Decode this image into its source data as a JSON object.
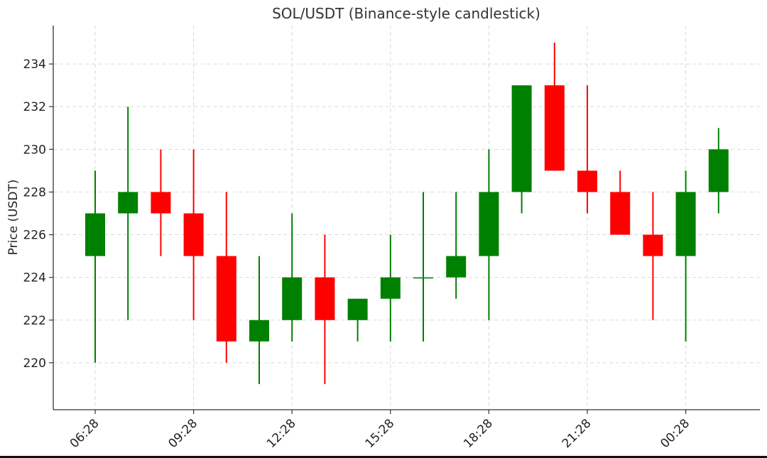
{
  "chart_data": {
    "type": "candlestick",
    "title": "SOL/USDT (Binance-style candlestick)",
    "xlabel": "",
    "ylabel": "Price (USDT)",
    "grid": true,
    "x_tick_labels": [
      "06:28",
      "09:28",
      "12:28",
      "15:28",
      "18:28",
      "21:28",
      "00:28"
    ],
    "y_ticks": [
      220,
      222,
      224,
      226,
      228,
      230,
      232,
      234
    ],
    "ylim": [
      217.8,
      235.8
    ],
    "up_color": "#008000",
    "down_color": "#ff0000",
    "candles": [
      {
        "open": 225,
        "high": 229,
        "low": 220,
        "close": 227
      },
      {
        "open": 227,
        "high": 232,
        "low": 222,
        "close": 228
      },
      {
        "open": 228,
        "high": 230,
        "low": 225,
        "close": 227
      },
      {
        "open": 227,
        "high": 230,
        "low": 222,
        "close": 225
      },
      {
        "open": 225,
        "high": 228,
        "low": 220,
        "close": 221
      },
      {
        "open": 221,
        "high": 225,
        "low": 219,
        "close": 222
      },
      {
        "open": 222,
        "high": 227,
        "low": 221,
        "close": 224
      },
      {
        "open": 224,
        "high": 226,
        "low": 219,
        "close": 222
      },
      {
        "open": 222,
        "high": 223,
        "low": 221,
        "close": 223
      },
      {
        "open": 223,
        "high": 226,
        "low": 221,
        "close": 224
      },
      {
        "open": 224,
        "high": 228,
        "low": 221,
        "close": 224
      },
      {
        "open": 224,
        "high": 228,
        "low": 223,
        "close": 225
      },
      {
        "open": 225,
        "high": 230,
        "low": 222,
        "close": 228
      },
      {
        "open": 228,
        "high": 233,
        "low": 227,
        "close": 233
      },
      {
        "open": 233,
        "high": 235,
        "low": 229,
        "close": 229
      },
      {
        "open": 229,
        "high": 233,
        "low": 227,
        "close": 228
      },
      {
        "open": 228,
        "high": 229,
        "low": 226,
        "close": 226
      },
      {
        "open": 226,
        "high": 228,
        "low": 222,
        "close": 225
      },
      {
        "open": 225,
        "high": 229,
        "low": 221,
        "close": 228
      },
      {
        "open": 228,
        "high": 231,
        "low": 227,
        "close": 230
      }
    ]
  }
}
